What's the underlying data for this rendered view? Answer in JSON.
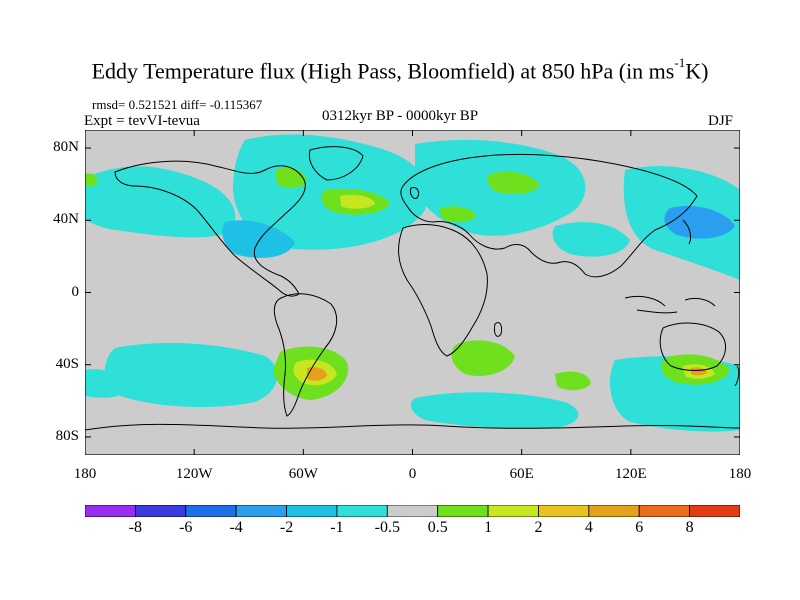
{
  "title": {
    "main": "Eddy Temperature flux (High Pass, Bloomfield) at 850 hPa (in ms",
    "sup": "-1",
    "tail": "K)"
  },
  "stats_line": "rmsd= 0.521521 diff= -0.115367",
  "expt_line": "Expt = tevVI-tevua",
  "period": "0312kyr BP - 0000kyr BP",
  "season": "DJF",
  "axes": {
    "y_ticks": [
      {
        "label": "80N",
        "lat": 80
      },
      {
        "label": "40N",
        "lat": 40
      },
      {
        "label": "0",
        "lat": 0
      },
      {
        "label": "40S",
        "lat": -40
      },
      {
        "label": "80S",
        "lat": -80
      }
    ],
    "x_ticks": [
      {
        "label": "180",
        "lon": -180
      },
      {
        "label": "120W",
        "lon": -120
      },
      {
        "label": "60W",
        "lon": -60
      },
      {
        "label": "0",
        "lon": 0
      },
      {
        "label": "60E",
        "lon": 60
      },
      {
        "label": "120E",
        "lon": 120
      },
      {
        "label": "180",
        "lon": 180
      }
    ],
    "lon_range": [
      -180,
      180
    ],
    "lat_range": [
      -90,
      90
    ]
  },
  "colorbar": {
    "colors": [
      "#9a2ef0",
      "#3a3adf",
      "#1f6fe8",
      "#2a9ff0",
      "#1ec0e6",
      "#2fe0d8",
      "#cccccc",
      "#6ee01e",
      "#c6e61e",
      "#e6c21e",
      "#e6a01e",
      "#ea6d1e",
      "#e23c14"
    ],
    "labels": [
      "-8",
      "-6",
      "-4",
      "-2",
      "-1",
      "-0.5",
      "0.5",
      "1",
      "2",
      "4",
      "6",
      "8"
    ]
  },
  "map_colors": {
    "ocean": "#cccccc",
    "coast": "#000000",
    "cyan": "#2fe0d8",
    "lightblue": "#1ec0e6",
    "blue": "#2a9ff0",
    "green": "#6ee01e",
    "yellow": "#c6e61e",
    "orange": "#e6a01e"
  }
}
